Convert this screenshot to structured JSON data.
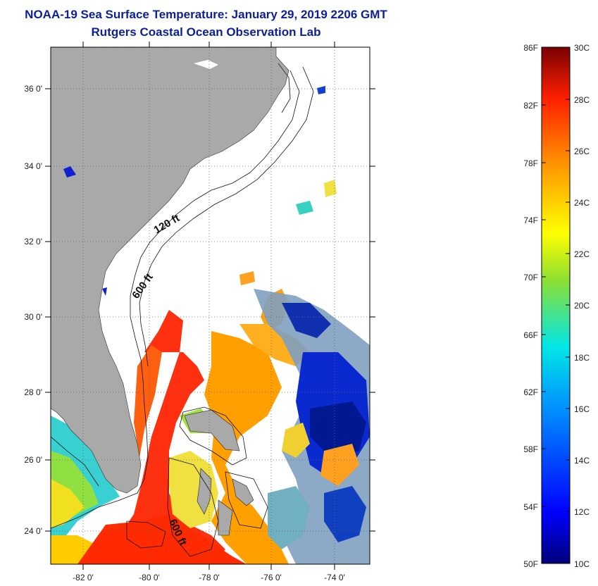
{
  "header": {
    "title": "NOAA-19 Sea Surface Temperature:  January 29, 2019 2206 GMT",
    "subtitle": "Rutgers Coastal Ocean Observation Lab"
  },
  "map": {
    "lon_range": [
      -83.0,
      -73.0
    ],
    "lat_range": [
      23.0,
      37.0
    ],
    "lon_ticks": [
      "-82 0'",
      "-80 0'",
      "-78 0'",
      "-76 0'",
      "-74 0'"
    ],
    "lat_ticks": [
      "24 0'",
      "26 0'",
      "28 0'",
      "30 0'",
      "32 0'",
      "34 0'",
      "36 0'"
    ],
    "contour_labels": [
      "120 ft",
      "600 ft",
      "600 ft"
    ],
    "colors": {
      "land": "#a9a9a9",
      "ocean_blank": "#ffffff",
      "grid": "#666666"
    }
  },
  "colorbar": {
    "fahrenheit_labels": [
      "86F",
      "82F",
      "78F",
      "74F",
      "70F",
      "66F",
      "62F",
      "58F",
      "54F",
      "50F"
    ],
    "celsius_labels": [
      "30C",
      "28C",
      "26C",
      "24C",
      "22C",
      "20C",
      "18C",
      "16C",
      "14C",
      "12C",
      "10C"
    ],
    "range_c": [
      10,
      30
    ],
    "range_f": [
      50,
      86
    ]
  }
}
